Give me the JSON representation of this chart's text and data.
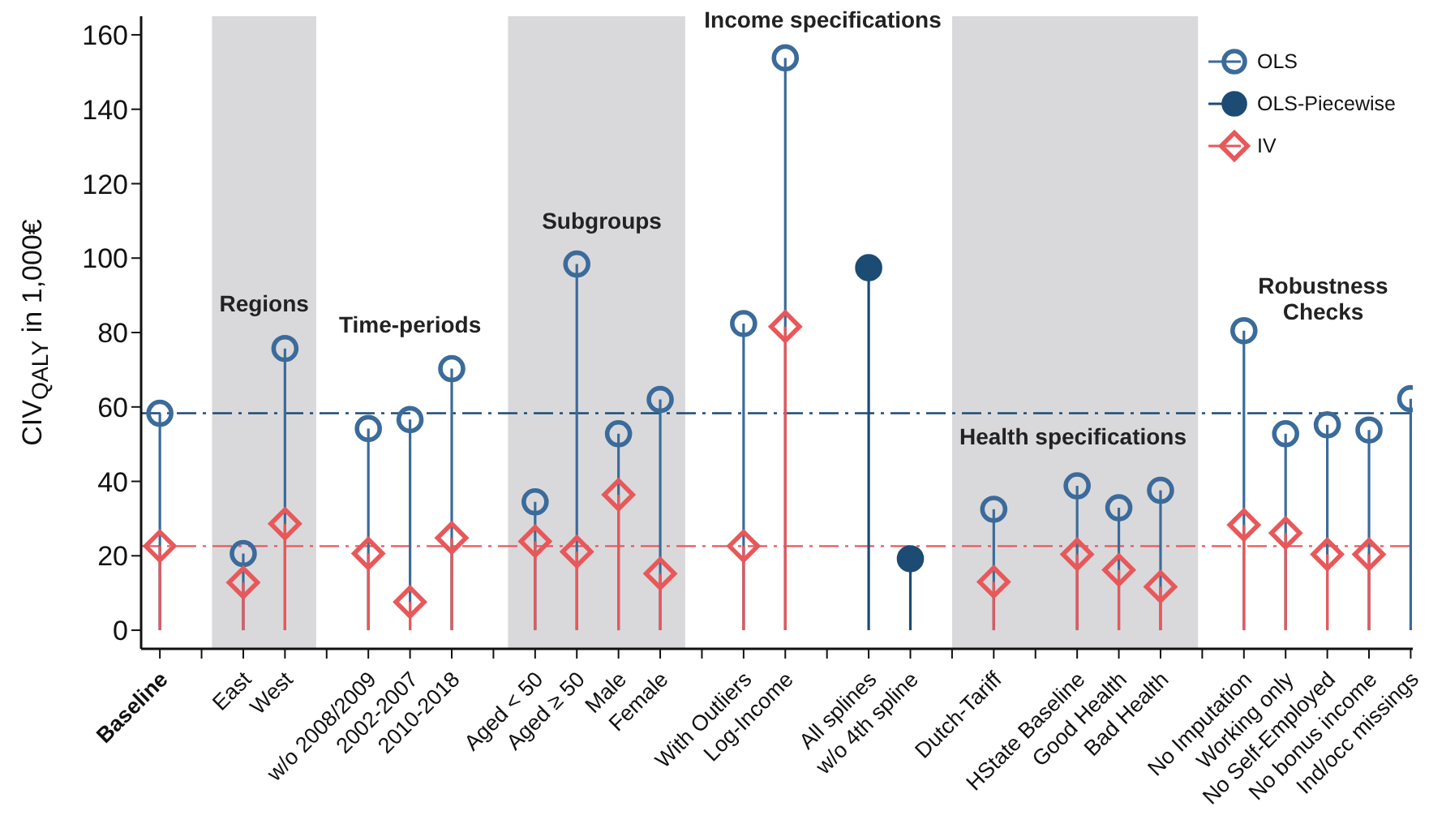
{
  "chart_data": {
    "type": "lollipop",
    "ylabel": "CIV$_{QALY}$ in 1,000€",
    "categories": [
      "Baseline",
      null,
      "East",
      "West",
      null,
      "w/o 2008/2009",
      "2002-2007",
      "2010-2018",
      null,
      "Aged < 50",
      "Aged ≥ 50",
      "Male",
      "Female",
      null,
      "With Outliers",
      "Log-Income",
      null,
      "All splines",
      "w/o 4th spline",
      null,
      "Dutch-Tariff",
      null,
      "HState Baseline",
      "Good Health",
      "Bad Health",
      null,
      "No Imputation",
      "Working only",
      "No Self-Employed",
      "No bonus income",
      "Ind/occ missings"
    ],
    "series": [
      {
        "name": "OLS",
        "color": "#3b6b9a",
        "marker": "circle",
        "values": [
          58.3,
          null,
          20.6,
          75.7,
          null,
          54.2,
          56.6,
          70.3,
          null,
          34.5,
          98.4,
          52.8,
          62.0,
          null,
          82.4,
          153.8,
          null,
          null,
          null,
          null,
          32.5,
          null,
          38.8,
          32.9,
          37.6,
          null,
          80.5,
          52.8,
          55.2,
          53.8,
          62.2
        ]
      },
      {
        "name": "OLS-Piecewise",
        "color": "#1c4b74",
        "marker": "circle",
        "values": [
          null,
          null,
          null,
          null,
          null,
          null,
          null,
          null,
          null,
          null,
          null,
          null,
          null,
          null,
          null,
          null,
          null,
          97.4,
          19.2,
          null,
          null,
          null,
          null,
          null,
          null,
          null,
          null,
          null,
          null,
          null,
          null
        ]
      },
      {
        "name": "IV",
        "color": "#e8585a",
        "marker": "diamond",
        "values": [
          22.6,
          null,
          12.8,
          28.6,
          null,
          20.6,
          7.6,
          24.8,
          null,
          23.9,
          21.1,
          36.4,
          15.2,
          null,
          22.6,
          81.6,
          null,
          null,
          null,
          null,
          13.0,
          null,
          20.4,
          16.2,
          11.7,
          null,
          28.3,
          26.1,
          20.4,
          20.4,
          null
        ]
      }
    ],
    "ylim": [
      -5,
      165
    ],
    "yticks": [
      0,
      20,
      40,
      60,
      80,
      100,
      120,
      140,
      160
    ],
    "grid": false,
    "legend": "top right",
    "ref_lines": [
      {
        "axis": "y",
        "value": 58.3,
        "color": "#1c4b74",
        "line_style": "dashed"
      },
      {
        "axis": "y",
        "value": 22.6,
        "color": "#e8585a",
        "line_style": "dashed"
      }
    ],
    "annotations": [
      "Regions",
      "Time-periods",
      "Subgroups",
      "Income specifications",
      "Health specifications",
      "Robustness Checks"
    ]
  }
}
